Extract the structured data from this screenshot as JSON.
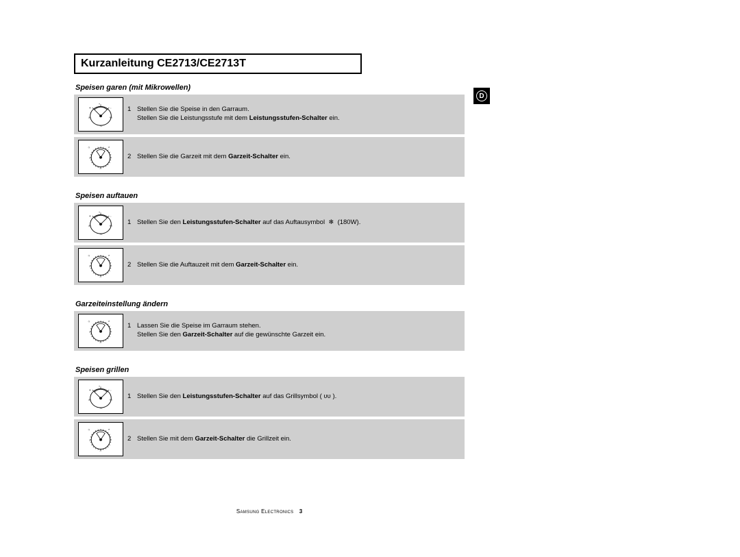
{
  "title": "Kurzanleitung CE2713/CE2713T",
  "lang_badge": "D",
  "sections": [
    {
      "title": "Speisen garen (mit Mikrowellen)",
      "steps": [
        {
          "num": "1",
          "dial": "power",
          "html": "Stellen Sie die Speise in den Garraum.<br>Stellen Sie die Leistungsstufe mit dem <b>Leistungsstufen-Schalter</b> ein."
        },
        {
          "num": "2",
          "dial": "time",
          "html": "Stellen Sie die Garzeit mit dem <b>Garzeit-Schalter</b> ein."
        }
      ]
    },
    {
      "title": "Speisen auftauen",
      "steps": [
        {
          "num": "1",
          "dial": "power",
          "html": "Stellen Sie den <b>Leistungsstufen-Schalter</b> auf das Auftausymbol &nbsp;❄&nbsp; (180W)."
        },
        {
          "num": "2",
          "dial": "time",
          "html": "Stellen Sie die Auftauzeit mit dem <b>Garzeit-Schalter</b> ein."
        }
      ]
    },
    {
      "title": "Garzeiteinstellung ändern",
      "steps": [
        {
          "num": "1",
          "dial": "time",
          "html": "Lassen Sie die Speise im Garraum stehen.<br>Stellen Sie den <b>Garzeit-Schalter</b> auf die gewünschte Garzeit ein."
        }
      ]
    },
    {
      "title": "Speisen grillen",
      "steps": [
        {
          "num": "1",
          "dial": "power",
          "html": "Stellen Sie den <b>Leistungsstufen-Schalter</b> auf das Grillsymbol (&nbsp;ʋʋ&nbsp;)."
        },
        {
          "num": "2",
          "dial": "time",
          "html": "Stellen Sie mit dem <b>Garzeit-Schalter</b> die Grillzeit ein."
        }
      ]
    }
  ],
  "footer_brand": "Samsung Electronics",
  "footer_page": "3",
  "colors": {
    "step_bg": "#cfcfcf",
    "page_bg": "#ffffff",
    "text": "#000000"
  }
}
